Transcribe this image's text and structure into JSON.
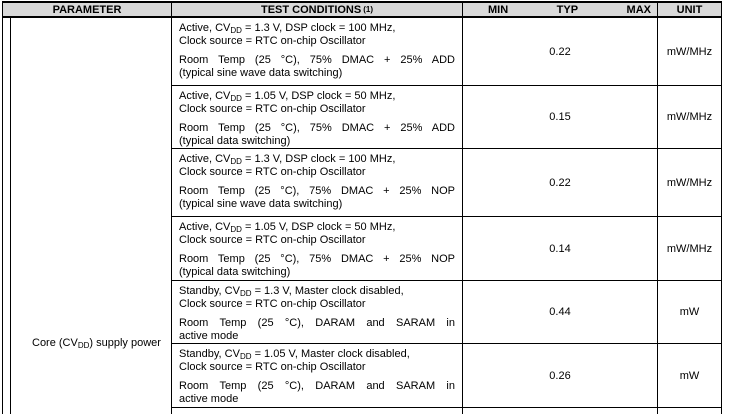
{
  "header": {
    "parameter": "PARAMETER",
    "test_conditions": "TEST CONDITIONS",
    "test_conditions_note": "(1)",
    "min": "MIN",
    "typ": "TYP",
    "max": "MAX",
    "unit": "UNIT"
  },
  "parameter": {
    "pre": "Core (CV",
    "sub": "DD",
    "post": ") supply power"
  },
  "rows": [
    {
      "cond1_pre": "Active, CV",
      "cond1_sub": "DD",
      "cond1_rest": " = 1.3 V, DSP clock = 100 MHz,",
      "cond1_line2": "Clock source = RTC on-chip Oscillator",
      "cond2_line1": "Room Temp (25 °C), 75% DMAC + 25% ADD",
      "cond2_line2": "(typical sine wave data switching)",
      "typ": "0.22",
      "unit": "mW/MHz"
    },
    {
      "cond1_pre": "Active, CV",
      "cond1_sub": "DD",
      "cond1_rest": " = 1.05 V, DSP clock = 50 MHz,",
      "cond1_line2": "Clock source = RTC on-chip Oscillator",
      "cond2_line1": "Room Temp (25 °C), 75% DMAC + 25% ADD",
      "cond2_line2": "(typical data switching)",
      "typ": "0.15",
      "unit": "mW/MHz"
    },
    {
      "cond1_pre": "Active, CV",
      "cond1_sub": "DD",
      "cond1_rest": " = 1.3 V, DSP clock = 100 MHz,",
      "cond1_line2": "Clock source = RTC on-chip Oscillator",
      "cond2_line1": "Room Temp (25 °C), 75% DMAC + 25% NOP",
      "cond2_line2": "(typical sine wave data switching)",
      "typ": "0.22",
      "unit": "mW/MHz"
    },
    {
      "cond1_pre": "Active, CV",
      "cond1_sub": "DD",
      "cond1_rest": " = 1.05 V, DSP clock = 50 MHz,",
      "cond1_line2": "Clock source = RTC on-chip Oscillator",
      "cond2_line1": "Room Temp (25 °C), 75% DMAC + 25% NOP",
      "cond2_line2": "(typical data switching)",
      "typ": "0.14",
      "unit": "mW/MHz"
    },
    {
      "cond1_pre": "Standby, CV",
      "cond1_sub": "DD",
      "cond1_rest": " = 1.3 V, Master clock disabled,",
      "cond1_line2": "Clock source = RTC on-chip Oscillator",
      "cond2_line1": "Room Temp (25 °C), DARAM and SARAM in",
      "cond2_line2": "active mode",
      "typ": "0.44",
      "unit": "mW"
    },
    {
      "cond1_pre": "Standby, CV",
      "cond1_sub": "DD",
      "cond1_rest": " = 1.05 V, Master clock disabled,",
      "cond1_line2": "Clock source = RTC on-chip Oscillator",
      "cond2_line1": "Room Temp (25 °C), DARAM and SARAM in",
      "cond2_line2": "active mode",
      "typ": "0.26",
      "unit": "mW"
    }
  ]
}
